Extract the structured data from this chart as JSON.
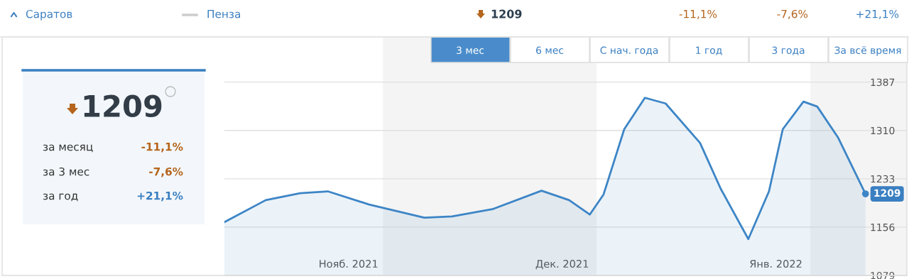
{
  "chart_data": {
    "type": "area",
    "x": [
      "2021-11-08",
      "2021-11-14",
      "2021-11-19",
      "2021-11-23",
      "2021-11-29",
      "2021-12-07",
      "2021-12-11",
      "2021-12-17",
      "2021-12-24",
      "2021-12-28",
      "2021-12-31",
      "2022-01-02",
      "2022-01-05",
      "2022-01-08",
      "2022-01-11",
      "2022-01-16",
      "2022-01-19",
      "2022-01-23",
      "2022-01-26",
      "2022-01-28",
      "2022-01-31",
      "2022-02-02",
      "2022-02-05",
      "2022-02-09"
    ],
    "series": [
      {
        "color": "#3d85c6",
        "values": [
          1164,
          1199,
          1210,
          1213,
          1192,
          1171,
          1173,
          1185,
          1214,
          1199,
          1176,
          1208,
          1312,
          1362,
          1353,
          1290,
          1217,
          1137,
          1213,
          1312,
          1356,
          1348,
          1299,
          1209
        ]
      }
    ],
    "xlim": [
      "2021-11-08",
      "2022-02-15"
    ],
    "xticks": [
      {
        "value": "2021-11-26",
        "label": "Нояб. 2021"
      },
      {
        "value": "2021-12-27",
        "label": "Дек. 2021"
      },
      {
        "value": "2022-01-27",
        "label": "Янв. 2022"
      }
    ],
    "ylim": [
      1079,
      1459
    ],
    "yticks": [
      1079,
      1156,
      1233,
      1310,
      1387
    ],
    "grid": "y",
    "bands": [
      {
        "axis": "x",
        "from": "2021-12-01",
        "to": "2022-01-01",
        "color": "#f4f4f4"
      },
      {
        "axis": "x",
        "from": "2022-02-01",
        "to": "2022-02-15",
        "color": "#f4f4f4"
      }
    ],
    "annotations": [
      "Саратов",
      "Пенза",
      "1209",
      "-11,1%",
      "-7,6%",
      "+21,1%",
      "3 мес",
      "6 мес",
      "С нач. года",
      "1 год",
      "3 года",
      "За всё время",
      "1209",
      "за месяц",
      "-11,1%",
      "за 3 мес",
      "-7,6%",
      "за год",
      "+21,1%",
      {
        "text": "1209",
        "x": "2022-02-09",
        "y": 1209
      }
    ]
  }
}
